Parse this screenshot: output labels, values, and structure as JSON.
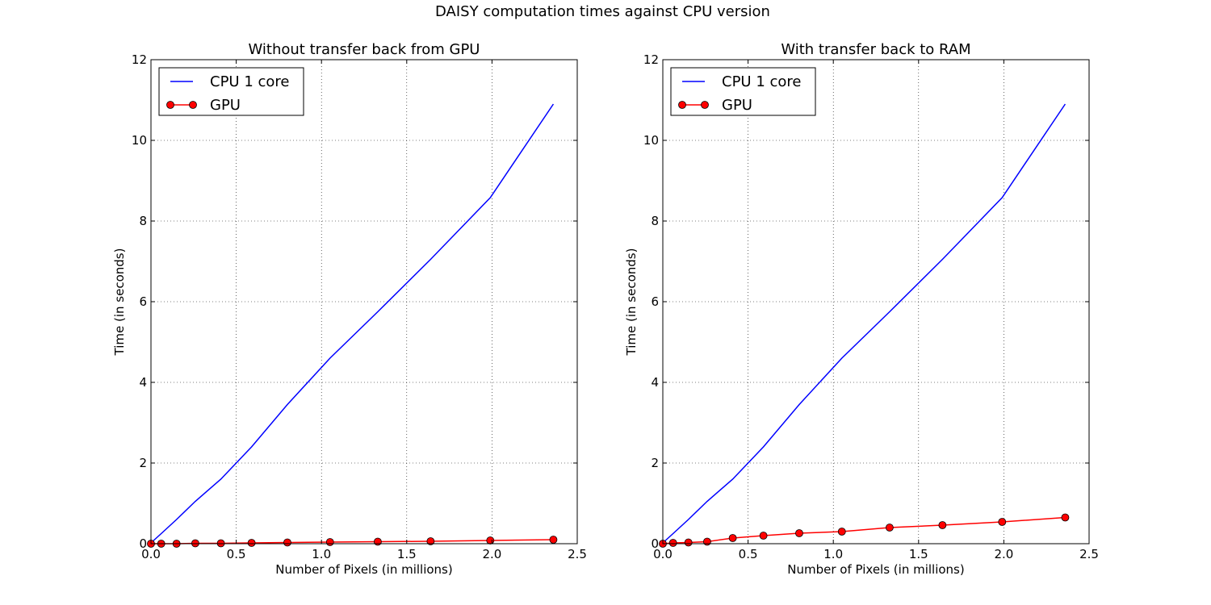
{
  "figure": {
    "suptitle": "DAISY computation times against CPU version"
  },
  "chart_data": [
    {
      "type": "line",
      "title": "Without transfer back from GPU",
      "xlabel": "Number of Pixels (in millions)",
      "ylabel": "Time (in seconds)",
      "xlim": [
        0,
        2.5
      ],
      "ylim": [
        0,
        12
      ],
      "xticks": [
        "0.0",
        "0.5",
        "1.0",
        "1.5",
        "2.0",
        "2.5"
      ],
      "yticks": [
        "0",
        "2",
        "4",
        "6",
        "8",
        "10",
        "12"
      ],
      "grid": true,
      "legend": "top-left",
      "series": [
        {
          "name": "CPU 1 core",
          "color": "#0000ff",
          "marker": "none",
          "x": [
            0.0,
            0.06,
            0.15,
            0.26,
            0.41,
            0.59,
            0.8,
            1.05,
            1.33,
            1.64,
            1.99,
            2.36
          ],
          "y": [
            0.02,
            0.25,
            0.6,
            1.05,
            1.6,
            2.4,
            3.45,
            4.6,
            5.75,
            7.05,
            8.58,
            10.9
          ]
        },
        {
          "name": "GPU",
          "color": "#ff0000",
          "marker": "circle",
          "x": [
            0.0,
            0.06,
            0.15,
            0.26,
            0.41,
            0.59,
            0.8,
            1.05,
            1.33,
            1.64,
            1.99,
            2.36
          ],
          "y": [
            0.0,
            0.0,
            0.0,
            0.01,
            0.01,
            0.02,
            0.03,
            0.04,
            0.05,
            0.06,
            0.08,
            0.1
          ]
        }
      ]
    },
    {
      "type": "line",
      "title": "With transfer back to RAM",
      "xlabel": "Number of Pixels (in millions)",
      "ylabel": "Time (in seconds)",
      "xlim": [
        0,
        2.5
      ],
      "ylim": [
        0,
        12
      ],
      "xticks": [
        "0.0",
        "0.5",
        "1.0",
        "1.5",
        "2.0",
        "2.5"
      ],
      "yticks": [
        "0",
        "2",
        "4",
        "6",
        "8",
        "10",
        "12"
      ],
      "grid": true,
      "legend": "top-left",
      "series": [
        {
          "name": "CPU 1 core",
          "color": "#0000ff",
          "marker": "none",
          "x": [
            0.0,
            0.06,
            0.15,
            0.26,
            0.41,
            0.59,
            0.8,
            1.05,
            1.33,
            1.64,
            1.99,
            2.36
          ],
          "y": [
            0.02,
            0.25,
            0.6,
            1.05,
            1.6,
            2.4,
            3.45,
            4.6,
            5.75,
            7.05,
            8.58,
            10.9
          ]
        },
        {
          "name": "GPU",
          "color": "#ff0000",
          "marker": "circle",
          "x": [
            0.0,
            0.06,
            0.15,
            0.26,
            0.41,
            0.59,
            0.8,
            1.05,
            1.33,
            1.64,
            1.99,
            2.36
          ],
          "y": [
            0.0,
            0.02,
            0.03,
            0.05,
            0.14,
            0.2,
            0.26,
            0.3,
            0.4,
            0.46,
            0.54,
            0.65
          ]
        }
      ]
    }
  ]
}
